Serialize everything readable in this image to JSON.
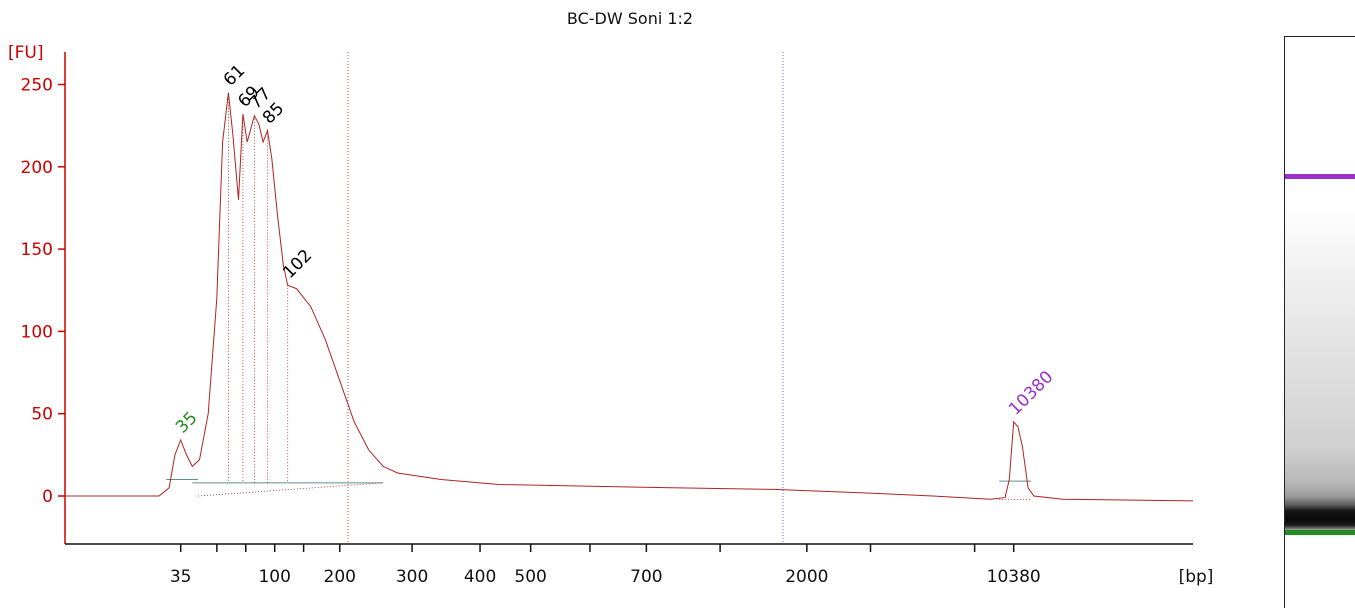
{
  "chart_data": {
    "type": "line",
    "title": "BC-DW Soni 1:2",
    "ylabel": "[FU]",
    "xlabel": "[bp]",
    "ylim": [
      -25,
      260
    ],
    "yticks": [
      0,
      50,
      100,
      150,
      200,
      250
    ],
    "x_ticks": [
      {
        "label": "35",
        "t": 34
      },
      {
        "label": "",
        "t": 36.5
      },
      {
        "label": "",
        "t": 38.5
      },
      {
        "label": "100",
        "t": 40.5
      },
      {
        "label": "",
        "t": 42.5
      },
      {
        "label": "200",
        "t": 45
      },
      {
        "label": "300",
        "t": 50
      },
      {
        "label": "400",
        "t": 54.7
      },
      {
        "label": "500",
        "t": 58.2
      },
      {
        "label": "",
        "t": 62.3
      },
      {
        "label": "700",
        "t": 66.2
      },
      {
        "label": "",
        "t": 71.3
      },
      {
        "label": "2000",
        "t": 77.3
      },
      {
        "label": "",
        "t": 81.7
      },
      {
        "label": "",
        "t": 88.9
      },
      {
        "label": "10380",
        "t": 91.6
      }
    ],
    "series": [
      {
        "color": "#b22222",
        "points": [
          [
            26,
            0
          ],
          [
            32.5,
            0
          ],
          [
            33.2,
            5
          ],
          [
            33.6,
            25
          ],
          [
            34.0,
            34
          ],
          [
            34.4,
            25
          ],
          [
            34.8,
            18
          ],
          [
            35.3,
            22
          ],
          [
            35.9,
            50
          ],
          [
            36.5,
            120
          ],
          [
            36.9,
            215
          ],
          [
            37.3,
            245
          ],
          [
            37.6,
            220
          ],
          [
            38.0,
            180
          ],
          [
            38.3,
            232
          ],
          [
            38.6,
            215
          ],
          [
            38.9,
            225
          ],
          [
            39.1,
            231
          ],
          [
            39.4,
            226
          ],
          [
            39.7,
            215
          ],
          [
            40.0,
            222
          ],
          [
            40.3,
            205
          ],
          [
            40.7,
            170
          ],
          [
            41.1,
            140
          ],
          [
            41.4,
            128
          ],
          [
            42.0,
            126
          ],
          [
            43.0,
            115
          ],
          [
            44.0,
            95
          ],
          [
            45.0,
            70
          ],
          [
            46.0,
            45
          ],
          [
            47.0,
            28
          ],
          [
            48.0,
            18
          ],
          [
            49.0,
            14
          ],
          [
            50.5,
            12
          ],
          [
            52.0,
            10
          ],
          [
            56.0,
            7
          ],
          [
            62.0,
            6
          ],
          [
            68.0,
            5
          ],
          [
            75.0,
            4
          ],
          [
            81.0,
            2
          ],
          [
            86.0,
            0
          ],
          [
            90.0,
            -2
          ],
          [
            91.0,
            -1
          ],
          [
            91.3,
            10
          ],
          [
            91.6,
            45
          ],
          [
            91.9,
            42
          ],
          [
            92.2,
            30
          ],
          [
            92.6,
            5
          ],
          [
            93.0,
            0
          ],
          [
            95.0,
            -2
          ],
          [
            104.0,
            -3
          ]
        ]
      }
    ],
    "peaks": [
      {
        "label": "35",
        "x": 34.0,
        "y": 34,
        "color": "#228b22"
      },
      {
        "label": "61",
        "x": 37.3,
        "y": 245,
        "color": "#000000"
      },
      {
        "label": "69",
        "x": 38.3,
        "y": 232,
        "color": "#000000"
      },
      {
        "label": "77",
        "x": 39.1,
        "y": 231,
        "color": "#000000"
      },
      {
        "label": "85",
        "x": 40.0,
        "y": 222,
        "color": "#000000"
      },
      {
        "label": "102",
        "x": 41.4,
        "y": 128,
        "color": "#000000"
      },
      {
        "label": "10380",
        "x": 91.6,
        "y": 45,
        "color": "#9932cc"
      }
    ],
    "gel_bands": [
      {
        "color": "#9932cc",
        "fraction": 0.245
      },
      {
        "color": "#228b22",
        "fraction": 0.868
      }
    ]
  }
}
